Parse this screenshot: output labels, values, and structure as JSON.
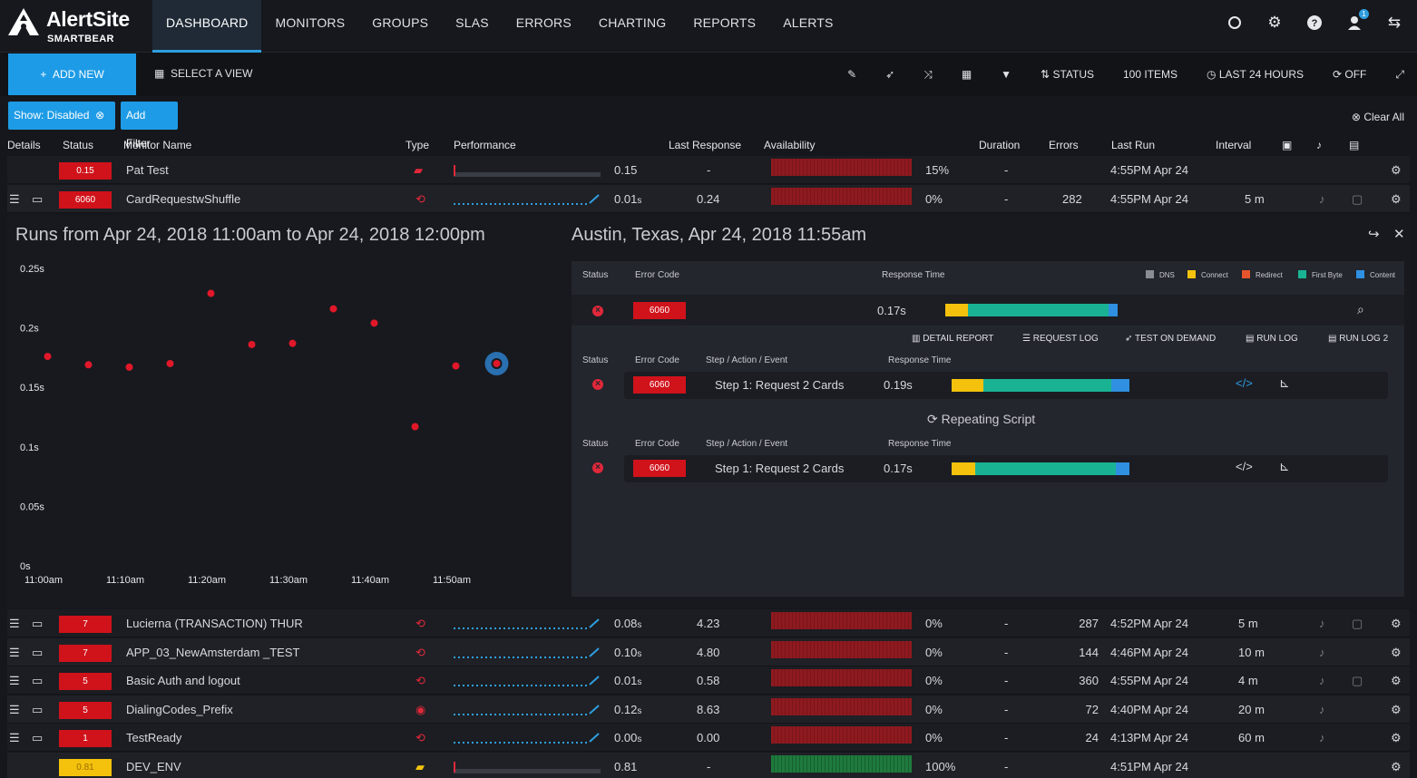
{
  "app": {
    "brand": "AlertSite",
    "sub_brand": "SMARTBEAR"
  },
  "nav": {
    "items": [
      "DASHBOARD",
      "MONITORS",
      "GROUPS",
      "SLAS",
      "ERRORS",
      "CHARTING",
      "REPORTS",
      "ALERTS"
    ],
    "active": "DASHBOARD",
    "notification_count": "1"
  },
  "toolbar": {
    "add_new": "ADD NEW",
    "select_view": "SELECT A VIEW",
    "status": "STATUS",
    "items": "100 ITEMS",
    "range": "LAST 24 HOURS",
    "refresh": "OFF"
  },
  "filters": {
    "chip1": "Show: Disabled",
    "chip2": "Add Filter",
    "clear_all": "Clear All"
  },
  "table": {
    "headers": {
      "details": "Details",
      "status": "Status",
      "monitor_name": "Monitor Name",
      "type": "Type",
      "performance": "Performance",
      "last_response": "Last Response",
      "availability": "Availability",
      "duration": "Duration",
      "errors": "Errors",
      "last_run": "Last Run",
      "interval": "Interval"
    },
    "rows_top": [
      {
        "status": "0.15",
        "name": "Pat Test",
        "perf": "0.15",
        "last_response": "-",
        "availability": "15%",
        "availability_fill": 0.15,
        "duration": "-",
        "errors": "",
        "last_run": "4:55PM Apr 24",
        "interval": "",
        "perf_unit": ""
      },
      {
        "status": "6060",
        "name": "CardRequestwShuffle",
        "perf": "0.01",
        "perf_unit": "s",
        "last_response": "0.24",
        "availability": "0%",
        "availability_fill": 0,
        "duration": "-",
        "errors": "282",
        "last_run": "4:55PM Apr 24",
        "interval": "5 m"
      }
    ],
    "rows_bottom": [
      {
        "status": "7",
        "name": "Lucierna (TRANSACTION) THUR",
        "perf": "0.08",
        "perf_unit": "s",
        "last_response": "4.23",
        "availability": "0%",
        "duration": "-",
        "errors": "287",
        "last_run": "4:52PM Apr 24",
        "interval": "5 m"
      },
      {
        "status": "7",
        "name": "APP_03_NewAmsterdam _TEST",
        "perf": "0.10",
        "perf_unit": "s",
        "last_response": "4.80",
        "availability": "0%",
        "duration": "-",
        "errors": "144",
        "last_run": "4:46PM Apr 24",
        "interval": "10 m"
      },
      {
        "status": "5",
        "name": "Basic Auth and logout",
        "perf": "0.01",
        "perf_unit": "s",
        "last_response": "0.58",
        "availability": "0%",
        "duration": "-",
        "errors": "360",
        "last_run": "4:55PM Apr 24",
        "interval": "4 m"
      },
      {
        "status": "5",
        "name": "DialingCodes_Prefix",
        "perf": "0.12",
        "perf_unit": "s",
        "last_response": "8.63",
        "availability": "0%",
        "duration": "-",
        "errors": "72",
        "last_run": "4:40PM Apr 24",
        "interval": "20 m"
      },
      {
        "status": "1",
        "name": "TestReady",
        "perf": "0.00",
        "perf_unit": "s",
        "last_response": "0.00",
        "availability": "0%",
        "duration": "-",
        "errors": "24",
        "last_run": "4:13PM Apr 24",
        "interval": "60 m"
      },
      {
        "status": "0.81",
        "name": "DEV_ENV",
        "perf": "0.81",
        "perf_unit": "",
        "last_response": "-",
        "availability": "100%",
        "duration": "-",
        "errors": "",
        "last_run": "4:51PM Apr 24",
        "interval": ""
      }
    ]
  },
  "runs": {
    "title": "Runs from Apr 24, 2018 11:00am to Apr 24, 2018 12:00pm",
    "location_title": "Austin, Texas, Apr 24, 2018 11:55am"
  },
  "chart_data": {
    "type": "scatter",
    "title": "",
    "x_ticks": [
      "11:00am",
      "11:10am",
      "11:20am",
      "11:30am",
      "11:40am",
      "11:50am"
    ],
    "y_ticks": [
      "0s",
      "0.05s",
      "0.1s",
      "0.15s",
      "0.2s",
      "0.25s"
    ],
    "ylim": [
      0,
      0.25
    ],
    "xlim_minutes": [
      0,
      60
    ],
    "points": [
      {
        "x": 0.5,
        "y": 0.176
      },
      {
        "x": 5.5,
        "y": 0.169
      },
      {
        "x": 10.5,
        "y": 0.167
      },
      {
        "x": 15.5,
        "y": 0.17
      },
      {
        "x": 20.5,
        "y": 0.229
      },
      {
        "x": 25.5,
        "y": 0.186
      },
      {
        "x": 30.5,
        "y": 0.187
      },
      {
        "x": 35.5,
        "y": 0.216
      },
      {
        "x": 40.5,
        "y": 0.204
      },
      {
        "x": 45.5,
        "y": 0.117
      },
      {
        "x": 50.5,
        "y": 0.168
      },
      {
        "x": 55.5,
        "y": 0.17
      }
    ],
    "selected_index": 11,
    "point_color": "#e0182a",
    "selected_ring_color": "#2a6fb0"
  },
  "detail": {
    "status_label": "Status",
    "error_code_label": "Error Code",
    "response_time_label": "Response Time",
    "step_label": "Step / Action / Event",
    "legend": [
      "DNS",
      "Connect",
      "Redirect",
      "First Byte",
      "Content"
    ],
    "legend_colors": [
      "#8a8d93",
      "#f4c20d",
      "#e8542c",
      "#19b394",
      "#2f8fe0"
    ],
    "summary": {
      "code": "6060",
      "time": "0.17s",
      "fractions": [
        0.13,
        0.79,
        0.05
      ]
    },
    "actions": [
      "DETAIL REPORT",
      "REQUEST LOG",
      "TEST ON DEMAND",
      "RUN LOG",
      "RUN LOG 2"
    ],
    "step1": {
      "code": "6060",
      "step": "Step 1: Request 2 Cards",
      "time": "0.19s"
    },
    "repeating": "Repeating Script",
    "step2": {
      "code": "6060",
      "step": "Step 1: Request 2 Cards",
      "time": "0.17s"
    }
  }
}
